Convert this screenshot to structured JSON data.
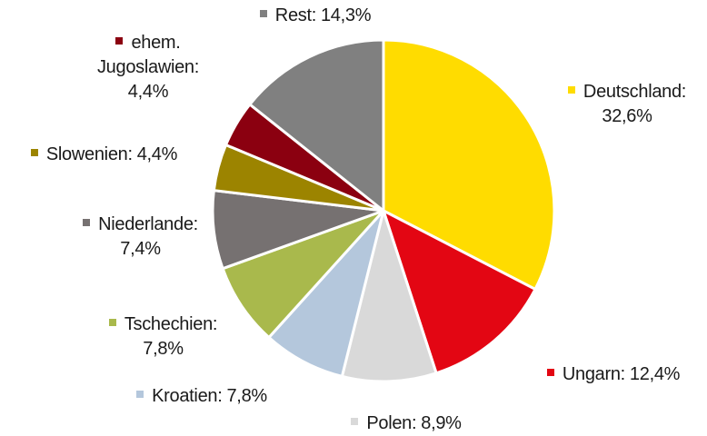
{
  "chart_data": {
    "type": "pie",
    "categories": [
      "Deutschland:",
      "Ungarn:",
      "Polen:",
      "Kroatien:",
      "Tschechien:",
      "Niederlande:",
      "Slowenien:",
      "ehem. Jugoslawien:",
      "Rest:"
    ],
    "values": [
      32.6,
      12.4,
      8.9,
      7.8,
      7.8,
      7.4,
      4.4,
      4.4,
      14.3
    ],
    "value_labels": [
      "32,6%",
      "12,4%",
      "8,9%",
      "7,8%",
      "7,8%",
      "7,4%",
      "4,4%",
      "4,4%",
      "14,3%"
    ],
    "colors": [
      "#ffdc00",
      "#e30613",
      "#d9d9d9",
      "#b4c7dc",
      "#a9b94c",
      "#767171",
      "#9c8400",
      "#8b0010",
      "#808080"
    ]
  }
}
